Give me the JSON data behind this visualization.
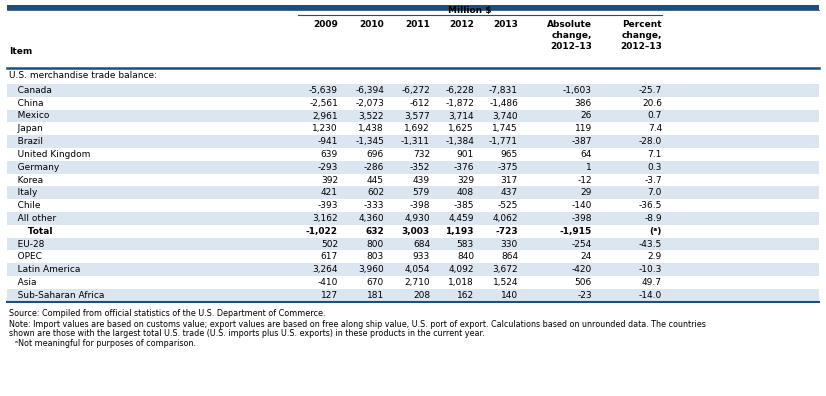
{
  "title": "Million $",
  "section_header": "U.S. merchandise trade balance:",
  "col_headers": [
    "Item",
    "2009",
    "2010",
    "2011",
    "2012",
    "2013",
    "Absolute\nchange,\n2012–13",
    "Percent\nchange,\n2012–13"
  ],
  "rows": [
    {
      "label": "   Canada",
      "values": [
        "-5,639",
        "-6,394",
        "-6,272",
        "-6,228",
        "-7,831",
        "-1,603",
        "-25.7"
      ],
      "shaded": true,
      "bold": false
    },
    {
      "label": "   China",
      "values": [
        "-2,561",
        "-2,073",
        "-612",
        "-1,872",
        "-1,486",
        "386",
        "20.6"
      ],
      "shaded": false,
      "bold": false
    },
    {
      "label": "   Mexico",
      "values": [
        "2,961",
        "3,522",
        "3,577",
        "3,714",
        "3,740",
        "26",
        "0.7"
      ],
      "shaded": true,
      "bold": false
    },
    {
      "label": "   Japan",
      "values": [
        "1,230",
        "1,438",
        "1,692",
        "1,625",
        "1,745",
        "119",
        "7.4"
      ],
      "shaded": false,
      "bold": false
    },
    {
      "label": "   Brazil",
      "values": [
        "-941",
        "-1,345",
        "-1,311",
        "-1,384",
        "-1,771",
        "-387",
        "-28.0"
      ],
      "shaded": true,
      "bold": false
    },
    {
      "label": "   United Kingdom",
      "values": [
        "639",
        "696",
        "732",
        "901",
        "965",
        "64",
        "7.1"
      ],
      "shaded": false,
      "bold": false
    },
    {
      "label": "   Germany",
      "values": [
        "-293",
        "-286",
        "-352",
        "-376",
        "-375",
        "1",
        "0.3"
      ],
      "shaded": true,
      "bold": false
    },
    {
      "label": "   Korea",
      "values": [
        "392",
        "445",
        "439",
        "329",
        "317",
        "-12",
        "-3.7"
      ],
      "shaded": false,
      "bold": false
    },
    {
      "label": "   Italy",
      "values": [
        "421",
        "602",
        "579",
        "408",
        "437",
        "29",
        "7.0"
      ],
      "shaded": true,
      "bold": false
    },
    {
      "label": "   Chile",
      "values": [
        "-393",
        "-333",
        "-398",
        "-385",
        "-525",
        "-140",
        "-36.5"
      ],
      "shaded": false,
      "bold": false
    },
    {
      "label": "   All other",
      "values": [
        "3,162",
        "4,360",
        "4,930",
        "4,459",
        "4,062",
        "-398",
        "-8.9"
      ],
      "shaded": true,
      "bold": false
    },
    {
      "label": "      Total",
      "values": [
        "-1,022",
        "632",
        "3,003",
        "1,193",
        "-723",
        "-1,915",
        "(ᵃ)"
      ],
      "shaded": false,
      "bold": true
    },
    {
      "label": "   EU-28",
      "values": [
        "502",
        "800",
        "684",
        "583",
        "330",
        "-254",
        "-43.5"
      ],
      "shaded": true,
      "bold": false
    },
    {
      "label": "   OPEC",
      "values": [
        "617",
        "803",
        "933",
        "840",
        "864",
        "24",
        "2.9"
      ],
      "shaded": false,
      "bold": false
    },
    {
      "label": "   Latin America",
      "values": [
        "3,264",
        "3,960",
        "4,054",
        "4,092",
        "3,672",
        "-420",
        "-10.3"
      ],
      "shaded": true,
      "bold": false
    },
    {
      "label": "   Asia",
      "values": [
        "-410",
        "670",
        "2,710",
        "1,018",
        "1,524",
        "506",
        "49.7"
      ],
      "shaded": false,
      "bold": false
    },
    {
      "label": "   Sub-Saharan Africa",
      "values": [
        "127",
        "181",
        "208",
        "162",
        "140",
        "-23",
        "-14.0"
      ],
      "shaded": true,
      "bold": false
    }
  ],
  "footnote_source": "Source: Compiled from official statistics of the U.S. Department of Commerce.",
  "footnote_note1": "Note: Import values are based on customs value; export values are based on free along ship value, U.S. port of export. Calculations based on unrounded data. The countries",
  "footnote_note2": "shown are those with the largest total U.S. trade (U.S. imports plus U.S. exports) in these products in the current year.",
  "footnote_a": "ᵃNot meaningful for purposes of comparison.",
  "shaded_bg": "#dce6f1",
  "white_bg": "#ffffff",
  "bar_color": "#1f4e79",
  "line_color": "#1f4e79",
  "text_color": "#000000"
}
